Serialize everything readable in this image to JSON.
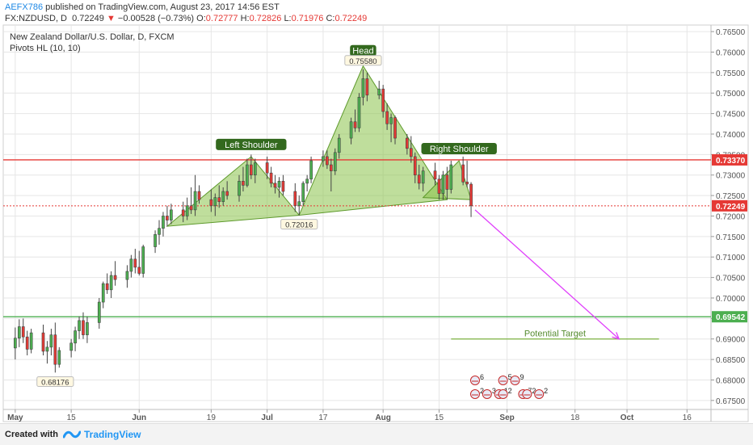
{
  "header": {
    "author": "AEFX786",
    "published": "published on TradingView.com, August 23, 2017 14:56 EST",
    "symbol": "FX:NZDUSD, D",
    "price": "0.72249",
    "change": "−0.00528 (−0.73%)",
    "o_label": "O:",
    "o_value": "0.72777",
    "h_label": "H:",
    "h_value": "0.72826",
    "l_label": "L:",
    "l_value": "0.71976",
    "c_label": "C:",
    "c_value": "0.72249"
  },
  "chart_title": "New Zealand Dollar/U.S. Dollar, D, FXCM",
  "indicator": "Pivots HL (10, 10)",
  "footer": {
    "created_with": "Created with",
    "brand": "TradingView"
  },
  "colors": {
    "bull": "#4caf50",
    "bear": "#e53935",
    "pattern_fill": "#8bc34a",
    "resistance": "#e53935",
    "support": "#4caf50",
    "projection": "#e040fb",
    "grid": "#e6e6e6"
  },
  "chart_data": {
    "type": "candlestick",
    "title": "New Zealand Dollar/U.S. Dollar, D, FXCM",
    "xlabel": "",
    "ylabel": "",
    "ylim": [
      0.6728,
      0.7666
    ],
    "x_range": [
      "2017-04-28",
      "2017-10-22"
    ],
    "x_ticks": [
      {
        "date": "2017-05-01",
        "label": "May"
      },
      {
        "date": "2017-05-15",
        "label": "15"
      },
      {
        "date": "2017-06-01",
        "label": "Jun"
      },
      {
        "date": "2017-06-19",
        "label": "19"
      },
      {
        "date": "2017-07-03",
        "label": "Jul"
      },
      {
        "date": "2017-07-17",
        "label": "17"
      },
      {
        "date": "2017-08-01",
        "label": "Aug"
      },
      {
        "date": "2017-08-15",
        "label": "15"
      },
      {
        "date": "2017-09-01",
        "label": "Sep"
      },
      {
        "date": "2017-09-18",
        "label": "18"
      },
      {
        "date": "2017-10-01",
        "label": "Oct"
      },
      {
        "date": "2017-10-16",
        "label": "16"
      }
    ],
    "y_ticks": [
      "0.67500",
      "0.68000",
      "0.68500",
      "0.69000",
      "0.69500",
      "0.70000",
      "0.70500",
      "0.71000",
      "0.71500",
      "0.72000",
      "0.72500",
      "0.73000",
      "0.73500",
      "0.74000",
      "0.74500",
      "0.75000",
      "0.75500",
      "0.76000",
      "0.76500"
    ],
    "grid": true,
    "price_labels": [
      {
        "value": 0.7337,
        "text": "0.73370",
        "color": "#e53935"
      },
      {
        "value": 0.72249,
        "text": "0.72249",
        "color": "#e53935"
      },
      {
        "value": 0.69542,
        "text": "0.69542",
        "color": "#4caf50"
      }
    ],
    "horizontal_lines": [
      {
        "value": 0.7337,
        "color": "#e53935",
        "style": "solid"
      },
      {
        "value": 0.72249,
        "color": "#e53935",
        "style": "dotted"
      },
      {
        "value": 0.69542,
        "color": "#4caf50",
        "style": "solid"
      }
    ],
    "pivot_labels": [
      {
        "date": "2017-05-11",
        "value": 0.68176,
        "text": "0.68176",
        "position": "below"
      },
      {
        "date": "2017-07-11",
        "value": 0.72016,
        "text": "0.72016",
        "position": "below"
      },
      {
        "date": "2017-07-27",
        "value": 0.7558,
        "text": "0.75580",
        "position": "above"
      }
    ],
    "pattern": {
      "left_shoulder": {
        "label": "Left Shoulder",
        "points": [
          [
            "2017-06-08",
            0.7175
          ],
          [
            "2017-06-29",
            0.7345
          ],
          [
            "2017-07-11",
            0.7202
          ]
        ]
      },
      "head": {
        "label": "Head",
        "points": [
          [
            "2017-07-11",
            0.7202
          ],
          [
            "2017-07-27",
            0.7566
          ],
          [
            "2017-08-17",
            0.724
          ]
        ]
      },
      "right_shoulder": {
        "label": "Right Shoulder",
        "points": [
          [
            "2017-08-11",
            0.7245
          ],
          [
            "2017-08-20",
            0.7335
          ],
          [
            "2017-08-23",
            0.724
          ]
        ]
      }
    },
    "projection": {
      "from": [
        "2017-08-24",
        0.7215
      ],
      "to": [
        "2017-09-29",
        0.69
      ]
    },
    "target": {
      "label": "Potential Target",
      "value": 0.69,
      "from": "2017-08-18",
      "to": "2017-10-09"
    },
    "event_markers": [
      {
        "date": "2017-08-24",
        "level": 0,
        "text": "6"
      },
      {
        "date": "2017-08-31",
        "level": 0,
        "text": "5"
      },
      {
        "date": "2017-09-03",
        "level": 0,
        "text": "9"
      },
      {
        "date": "2017-08-24",
        "level": 1,
        "text": "2"
      },
      {
        "date": "2017-08-27",
        "level": 1,
        "text": "3"
      },
      {
        "date": "2017-08-30",
        "level": 1,
        "text": "1"
      },
      {
        "date": "2017-08-31",
        "level": 1,
        "text": "2"
      },
      {
        "date": "2017-09-05",
        "level": 1,
        "text": "7"
      },
      {
        "date": "2017-09-06",
        "level": 1,
        "text": "2"
      },
      {
        "date": "2017-09-09",
        "level": 1,
        "text": "2"
      }
    ],
    "candles": [
      {
        "date": "2017-05-01",
        "o": 0.6878,
        "h": 0.6928,
        "l": 0.685,
        "c": 0.6902
      },
      {
        "date": "2017-05-02",
        "o": 0.6902,
        "h": 0.6948,
        "l": 0.688,
        "c": 0.693
      },
      {
        "date": "2017-05-03",
        "o": 0.693,
        "h": 0.695,
        "l": 0.689,
        "c": 0.6905
      },
      {
        "date": "2017-05-04",
        "o": 0.6905,
        "h": 0.692,
        "l": 0.686,
        "c": 0.6875
      },
      {
        "date": "2017-05-05",
        "o": 0.6875,
        "h": 0.6925,
        "l": 0.6865,
        "c": 0.6915
      },
      {
        "date": "2017-05-08",
        "o": 0.6915,
        "h": 0.6935,
        "l": 0.686,
        "c": 0.687
      },
      {
        "date": "2017-05-09",
        "o": 0.687,
        "h": 0.6895,
        "l": 0.684,
        "c": 0.688
      },
      {
        "date": "2017-05-10",
        "o": 0.688,
        "h": 0.6925,
        "l": 0.686,
        "c": 0.691
      },
      {
        "date": "2017-05-11",
        "o": 0.691,
        "h": 0.694,
        "l": 0.6818,
        "c": 0.6838
      },
      {
        "date": "2017-05-12",
        "o": 0.6838,
        "h": 0.688,
        "l": 0.683,
        "c": 0.6872
      },
      {
        "date": "2017-05-15",
        "o": 0.6872,
        "h": 0.69,
        "l": 0.6855,
        "c": 0.689
      },
      {
        "date": "2017-05-16",
        "o": 0.689,
        "h": 0.693,
        "l": 0.687,
        "c": 0.692
      },
      {
        "date": "2017-05-17",
        "o": 0.692,
        "h": 0.6955,
        "l": 0.69,
        "c": 0.6945
      },
      {
        "date": "2017-05-18",
        "o": 0.6945,
        "h": 0.6965,
        "l": 0.69,
        "c": 0.691
      },
      {
        "date": "2017-05-19",
        "o": 0.691,
        "h": 0.6955,
        "l": 0.689,
        "c": 0.694
      },
      {
        "date": "2017-05-22",
        "o": 0.694,
        "h": 0.7,
        "l": 0.6925,
        "c": 0.699
      },
      {
        "date": "2017-05-23",
        "o": 0.699,
        "h": 0.704,
        "l": 0.6975,
        "c": 0.7035
      },
      {
        "date": "2017-05-24",
        "o": 0.7035,
        "h": 0.706,
        "l": 0.701,
        "c": 0.702
      },
      {
        "date": "2017-05-25",
        "o": 0.702,
        "h": 0.7065,
        "l": 0.7,
        "c": 0.7055
      },
      {
        "date": "2017-05-26",
        "o": 0.7055,
        "h": 0.709,
        "l": 0.703,
        "c": 0.7045
      },
      {
        "date": "2017-05-29",
        "o": 0.7045,
        "h": 0.708,
        "l": 0.7025,
        "c": 0.7065
      },
      {
        "date": "2017-05-30",
        "o": 0.7065,
        "h": 0.7105,
        "l": 0.705,
        "c": 0.7095
      },
      {
        "date": "2017-05-31",
        "o": 0.7095,
        "h": 0.712,
        "l": 0.706,
        "c": 0.7075
      },
      {
        "date": "2017-06-01",
        "o": 0.7075,
        "h": 0.7115,
        "l": 0.7055,
        "c": 0.706
      },
      {
        "date": "2017-06-02",
        "o": 0.706,
        "h": 0.713,
        "l": 0.705,
        "c": 0.7125
      },
      {
        "date": "2017-06-05",
        "o": 0.7125,
        "h": 0.7165,
        "l": 0.711,
        "c": 0.7155
      },
      {
        "date": "2017-06-06",
        "o": 0.7155,
        "h": 0.719,
        "l": 0.713,
        "c": 0.717
      },
      {
        "date": "2017-06-07",
        "o": 0.717,
        "h": 0.721,
        "l": 0.715,
        "c": 0.72
      },
      {
        "date": "2017-06-08",
        "o": 0.72,
        "h": 0.7225,
        "l": 0.7175,
        "c": 0.719
      },
      {
        "date": "2017-06-09",
        "o": 0.719,
        "h": 0.723,
        "l": 0.718,
        "c": 0.7215
      },
      {
        "date": "2017-06-12",
        "o": 0.7215,
        "h": 0.7235,
        "l": 0.7185,
        "c": 0.72
      },
      {
        "date": "2017-06-13",
        "o": 0.72,
        "h": 0.7245,
        "l": 0.719,
        "c": 0.7225
      },
      {
        "date": "2017-06-14",
        "o": 0.7225,
        "h": 0.727,
        "l": 0.7205,
        "c": 0.7215
      },
      {
        "date": "2017-06-15",
        "o": 0.7215,
        "h": 0.73,
        "l": 0.72,
        "c": 0.726
      },
      {
        "date": "2017-06-16",
        "o": 0.726,
        "h": 0.7275,
        "l": 0.723,
        "c": 0.724
      },
      {
        "date": "2017-06-19",
        "o": 0.724,
        "h": 0.7265,
        "l": 0.721,
        "c": 0.7225
      },
      {
        "date": "2017-06-20",
        "o": 0.7225,
        "h": 0.7255,
        "l": 0.72,
        "c": 0.7245
      },
      {
        "date": "2017-06-21",
        "o": 0.7245,
        "h": 0.7275,
        "l": 0.722,
        "c": 0.7235
      },
      {
        "date": "2017-06-22",
        "o": 0.7235,
        "h": 0.727,
        "l": 0.7225,
        "c": 0.726
      },
      {
        "date": "2017-06-23",
        "o": 0.726,
        "h": 0.7285,
        "l": 0.724,
        "c": 0.725
      },
      {
        "date": "2017-06-26",
        "o": 0.725,
        "h": 0.73,
        "l": 0.7235,
        "c": 0.7285
      },
      {
        "date": "2017-06-27",
        "o": 0.7285,
        "h": 0.732,
        "l": 0.726,
        "c": 0.7275
      },
      {
        "date": "2017-06-28",
        "o": 0.7275,
        "h": 0.734,
        "l": 0.727,
        "c": 0.7325
      },
      {
        "date": "2017-06-29",
        "o": 0.7325,
        "h": 0.735,
        "l": 0.729,
        "c": 0.73
      },
      {
        "date": "2017-06-30",
        "o": 0.73,
        "h": 0.734,
        "l": 0.728,
        "c": 0.733
      },
      {
        "date": "2017-07-03",
        "o": 0.733,
        "h": 0.7345,
        "l": 0.729,
        "c": 0.7305
      },
      {
        "date": "2017-07-04",
        "o": 0.7305,
        "h": 0.732,
        "l": 0.727,
        "c": 0.728
      },
      {
        "date": "2017-07-05",
        "o": 0.728,
        "h": 0.73,
        "l": 0.7255,
        "c": 0.727
      },
      {
        "date": "2017-07-06",
        "o": 0.727,
        "h": 0.7295,
        "l": 0.7245,
        "c": 0.7285
      },
      {
        "date": "2017-07-07",
        "o": 0.7285,
        "h": 0.73,
        "l": 0.725,
        "c": 0.726
      },
      {
        "date": "2017-07-10",
        "o": 0.726,
        "h": 0.728,
        "l": 0.721,
        "c": 0.7225
      },
      {
        "date": "2017-07-11",
        "o": 0.7225,
        "h": 0.725,
        "l": 0.7202,
        "c": 0.7235
      },
      {
        "date": "2017-07-12",
        "o": 0.7235,
        "h": 0.7285,
        "l": 0.7225,
        "c": 0.728
      },
      {
        "date": "2017-07-13",
        "o": 0.728,
        "h": 0.73,
        "l": 0.726,
        "c": 0.729
      },
      {
        "date": "2017-07-14",
        "o": 0.729,
        "h": 0.7345,
        "l": 0.728,
        "c": 0.7335
      },
      {
        "date": "2017-07-17",
        "o": 0.7335,
        "h": 0.736,
        "l": 0.732,
        "c": 0.7345
      },
      {
        "date": "2017-07-18",
        "o": 0.7345,
        "h": 0.736,
        "l": 0.7315,
        "c": 0.7325
      },
      {
        "date": "2017-07-19",
        "o": 0.7325,
        "h": 0.734,
        "l": 0.726,
        "c": 0.731
      },
      {
        "date": "2017-07-20",
        "o": 0.731,
        "h": 0.7365,
        "l": 0.73,
        "c": 0.7355
      },
      {
        "date": "2017-07-21",
        "o": 0.7355,
        "h": 0.74,
        "l": 0.734,
        "c": 0.739
      },
      {
        "date": "2017-07-24",
        "o": 0.739,
        "h": 0.744,
        "l": 0.7375,
        "c": 0.743
      },
      {
        "date": "2017-07-25",
        "o": 0.743,
        "h": 0.746,
        "l": 0.7405,
        "c": 0.7415
      },
      {
        "date": "2017-07-26",
        "o": 0.7415,
        "h": 0.75,
        "l": 0.7405,
        "c": 0.749
      },
      {
        "date": "2017-07-27",
        "o": 0.749,
        "h": 0.7558,
        "l": 0.747,
        "c": 0.7535
      },
      {
        "date": "2017-07-28",
        "o": 0.7535,
        "h": 0.755,
        "l": 0.748,
        "c": 0.7495
      },
      {
        "date": "2017-07-31",
        "o": 0.7495,
        "h": 0.753,
        "l": 0.7485,
        "c": 0.751
      },
      {
        "date": "2017-08-01",
        "o": 0.751,
        "h": 0.752,
        "l": 0.744,
        "c": 0.7455
      },
      {
        "date": "2017-08-02",
        "o": 0.7455,
        "h": 0.7475,
        "l": 0.741,
        "c": 0.7425
      },
      {
        "date": "2017-08-03",
        "o": 0.7425,
        "h": 0.745,
        "l": 0.738,
        "c": 0.744
      },
      {
        "date": "2017-08-04",
        "o": 0.744,
        "h": 0.7445,
        "l": 0.7375,
        "c": 0.739
      },
      {
        "date": "2017-08-07",
        "o": 0.739,
        "h": 0.74,
        "l": 0.735,
        "c": 0.7365
      },
      {
        "date": "2017-08-08",
        "o": 0.7365,
        "h": 0.7395,
        "l": 0.733,
        "c": 0.7345
      },
      {
        "date": "2017-08-09",
        "o": 0.7345,
        "h": 0.7355,
        "l": 0.728,
        "c": 0.73
      },
      {
        "date": "2017-08-10",
        "o": 0.73,
        "h": 0.7325,
        "l": 0.7265,
        "c": 0.728
      },
      {
        "date": "2017-08-11",
        "o": 0.728,
        "h": 0.732,
        "l": 0.726,
        "c": 0.731
      },
      {
        "date": "2017-08-14",
        "o": 0.731,
        "h": 0.733,
        "l": 0.7275,
        "c": 0.729
      },
      {
        "date": "2017-08-15",
        "o": 0.729,
        "h": 0.73,
        "l": 0.724,
        "c": 0.7255
      },
      {
        "date": "2017-08-16",
        "o": 0.7255,
        "h": 0.731,
        "l": 0.724,
        "c": 0.73
      },
      {
        "date": "2017-08-17",
        "o": 0.73,
        "h": 0.732,
        "l": 0.724,
        "c": 0.7265
      },
      {
        "date": "2017-08-18",
        "o": 0.7265,
        "h": 0.7335,
        "l": 0.7255,
        "c": 0.7325
      },
      {
        "date": "2017-08-21",
        "o": 0.7325,
        "h": 0.7345,
        "l": 0.7275,
        "c": 0.7283
      },
      {
        "date": "2017-08-22",
        "o": 0.7283,
        "h": 0.7335,
        "l": 0.727,
        "c": 0.7278
      },
      {
        "date": "2017-08-23",
        "o": 0.72777,
        "h": 0.72826,
        "l": 0.71976,
        "c": 0.72249
      }
    ]
  }
}
